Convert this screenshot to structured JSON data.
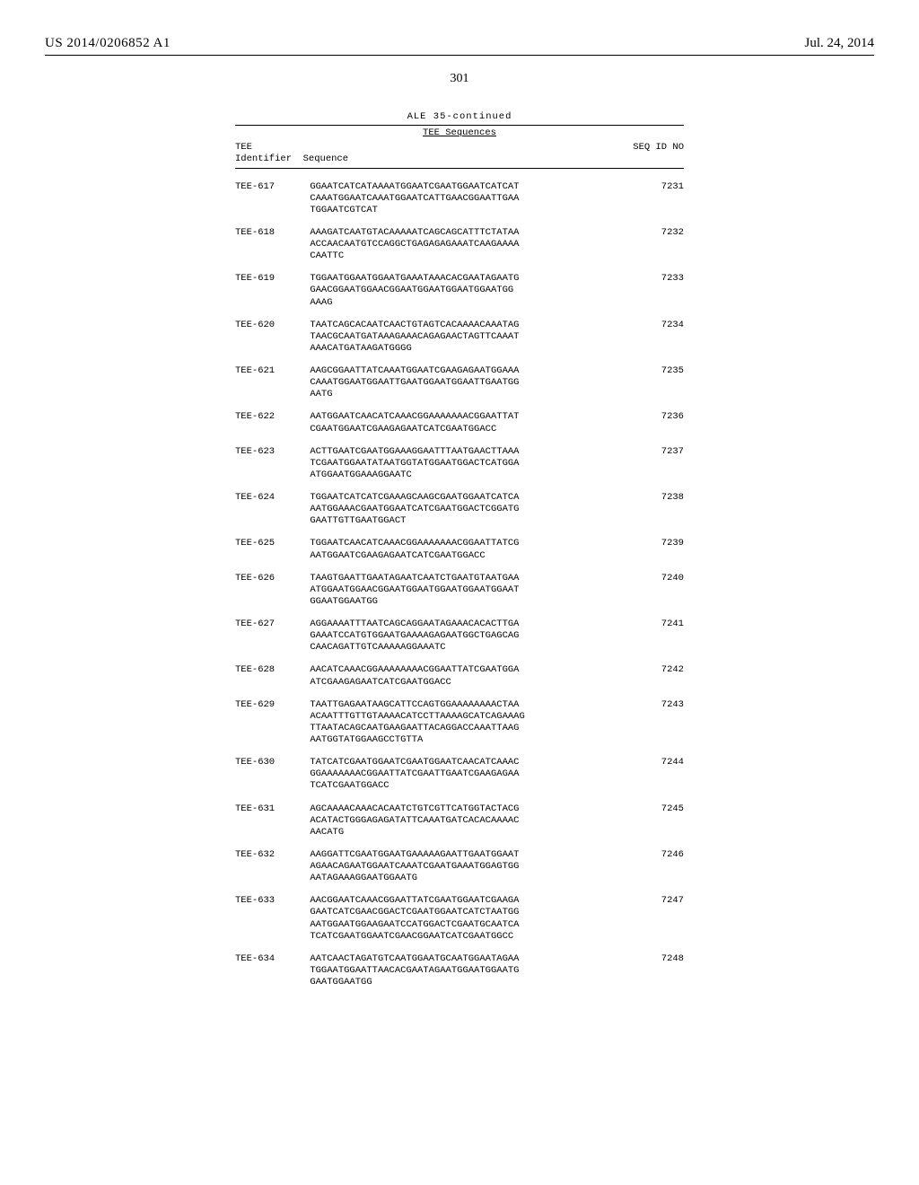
{
  "header": {
    "pub_number": "US 2014/0206852 A1",
    "pub_date": "Jul. 24, 2014",
    "page_number": "301"
  },
  "table": {
    "title": "ALE 35-continued",
    "subheading": "TEE Sequences",
    "col_left_line1": "TEE",
    "col_left_line2": "Identifier",
    "col_mid": "Sequence",
    "col_right": "SEQ ID NO",
    "rows": [
      {
        "id": "TEE-617",
        "seq": "GGAATCATCATAAAATGGAATCGAATGGAATCATCAT\nCAAATGGAATCAAATGGAATCATTGAACGGAATTGAA\nTGGAATCGTCAT",
        "sid": "7231"
      },
      {
        "id": "TEE-618",
        "seq": "AAAGATCAATGTACAAAAATCAGCAGCATTTCTATAA\nACCAACAATGTCCAGGCTGAGAGAGAAATCAAGAAAA\nCAATTC",
        "sid": "7232"
      },
      {
        "id": "TEE-619",
        "seq": "TGGAATGGAATGGAATGAAATAAACACGAATAGAATG\nGAACGGAATGGAACGGAATGGAATGGAATGGAATGG\nAAAG",
        "sid": "7233"
      },
      {
        "id": "TEE-620",
        "seq": "TAATCAGCACAATCAACTGTAGTCACAAAACAAATAG\nTAACGCAATGATAAAGAAACAGAGAACTAGTTCAAAT\nAAACATGATAAGATGGGG",
        "sid": "7234"
      },
      {
        "id": "TEE-621",
        "seq": "AAGCGGAATTATCAAATGGAATCGAAGAGAATGGAAA\nCAAATGGAATGGAATTGAATGGAATGGAATTGAATGG\nAATG",
        "sid": "7235"
      },
      {
        "id": "TEE-622",
        "seq": "AATGGAATCAACATCAAACGGAAAAAAACGGAATTAT\nCGAATGGAATCGAAGAGAATCATCGAATGGACC",
        "sid": "7236"
      },
      {
        "id": "TEE-623",
        "seq": "ACTTGAATCGAATGGAAAGGAATTTAATGAACTTAAA\nTCGAATGGAATATAATGGTATGGAATGGACTCATGGA\nATGGAATGGAAAGGAATC",
        "sid": "7237"
      },
      {
        "id": "TEE-624",
        "seq": "TGGAATCATCATCGAAAGCAAGCGAATGGAATCATCA\nAATGGAAACGAATGGAATCATCGAATGGACTCGGATG\nGAATTGTTGAATGGACT",
        "sid": "7238"
      },
      {
        "id": "TEE-625",
        "seq": "TGGAATCAACATCAAACGGAAAAAAACGGAATTATCG\nAATGGAATCGAAGAGAATCATCGAATGGACC",
        "sid": "7239"
      },
      {
        "id": "TEE-626",
        "seq": "TAAGTGAATTGAATAGAATCAATCTGAATGTAATGAA\nATGGAATGGAACGGAATGGAATGGAATGGAATGGAAT\nGGAATGGAATGG",
        "sid": "7240"
      },
      {
        "id": "TEE-627",
        "seq": "AGGAAAATTTAATCAGCAGGAATAGAAACACACTTGA\nGAAATCCATGTGGAATGAAAAGAGAATGGCTGAGCAG\nCAACAGATTGTCAAAAAGGAAATC",
        "sid": "7241"
      },
      {
        "id": "TEE-628",
        "seq": "AACATCAAACGGAAAAAAAACGGAATTATCGAATGGA\nATCGAAGAGAATCATCGAATGGACC",
        "sid": "7242"
      },
      {
        "id": "TEE-629",
        "seq": "TAATTGAGAATAAGCATTCCAGTGGAAAAAAAACTAA\nACAATTTGTTGTAAAACATCCTTAAAAGCATCAGAAAG\nTTAATACAGCAATGAAGAATTACAGGACCAAATTAAG\nAATGGTATGGAAGCCTGTTA",
        "sid": "7243"
      },
      {
        "id": "TEE-630",
        "seq": "TATCATCGAATGGAATCGAATGGAATCAACATCAAAC\nGGAAAAAAACGGAATTATCGAATTGAATCGAAGAGAA\nTCATCGAATGGACC",
        "sid": "7244"
      },
      {
        "id": "TEE-631",
        "seq": "AGCAAAACAAACACAATCTGTCGTTCATGGTACTACG\nACATACTGGGAGAGATATTCAAATGATCACACAAAAC\nAACATG",
        "sid": "7245"
      },
      {
        "id": "TEE-632",
        "seq": "AAGGATTCGAATGGAATGAAAAAGAATTGAATGGAAT\nAGAACAGAATGGAATCAAATCGAATGAAATGGAGTGG\nAATAGAAAGGAATGGAATG",
        "sid": "7246"
      },
      {
        "id": "TEE-633",
        "seq": "AACGGAATCAAACGGAATTATCGAATGGAATCGAAGA\nGAATCATCGAACGGACTCGAATGGAATCATCTAATGG\nAATGGAATGGAAGAATCCATGGACTCGAATGCAATCA\nTCATCGAATGGAATCGAACGGAATCATCGAATGGCC",
        "sid": "7247"
      },
      {
        "id": "TEE-634",
        "seq": "AATCAACTAGATGTCAATGGAATGCAATGGAATAGAA\nTGGAATGGAATTAACACGAATAGAATGGAATGGAATG\nGAATGGAATGG",
        "sid": "7248"
      }
    ]
  }
}
